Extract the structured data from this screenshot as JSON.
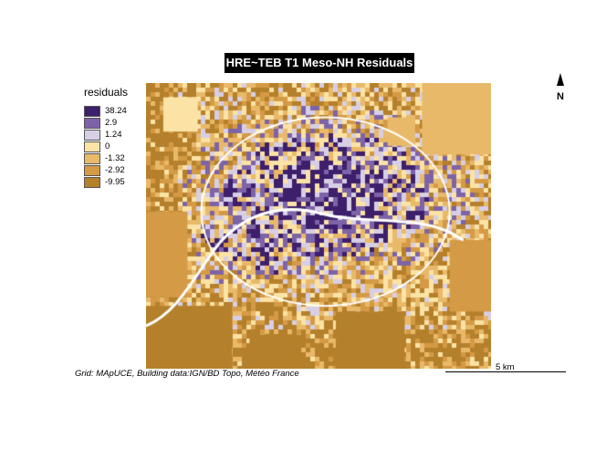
{
  "title": "HRE~TEB T1 Meso-NH Residuals",
  "legend": {
    "title": "residuals",
    "items": [
      {
        "label": "38.24",
        "color": "#3d1f6b"
      },
      {
        "label": "2.9",
        "color": "#7d63a8"
      },
      {
        "label": "1.24",
        "color": "#d7cfe6"
      },
      {
        "label": "0",
        "color": "#fbe3a6"
      },
      {
        "label": "-1.32",
        "color": "#e9b96a"
      },
      {
        "label": "-2.92",
        "color": "#d49a45"
      },
      {
        "label": "-9.95",
        "color": "#b5802b"
      }
    ]
  },
  "north_label": "N",
  "credit": "Grid: MApUCE, Building data:IGN/BD Topo, Météo France",
  "scale": {
    "label": "5 km"
  },
  "colors": {
    "river": "#ffffff",
    "background": "#ffffff"
  }
}
